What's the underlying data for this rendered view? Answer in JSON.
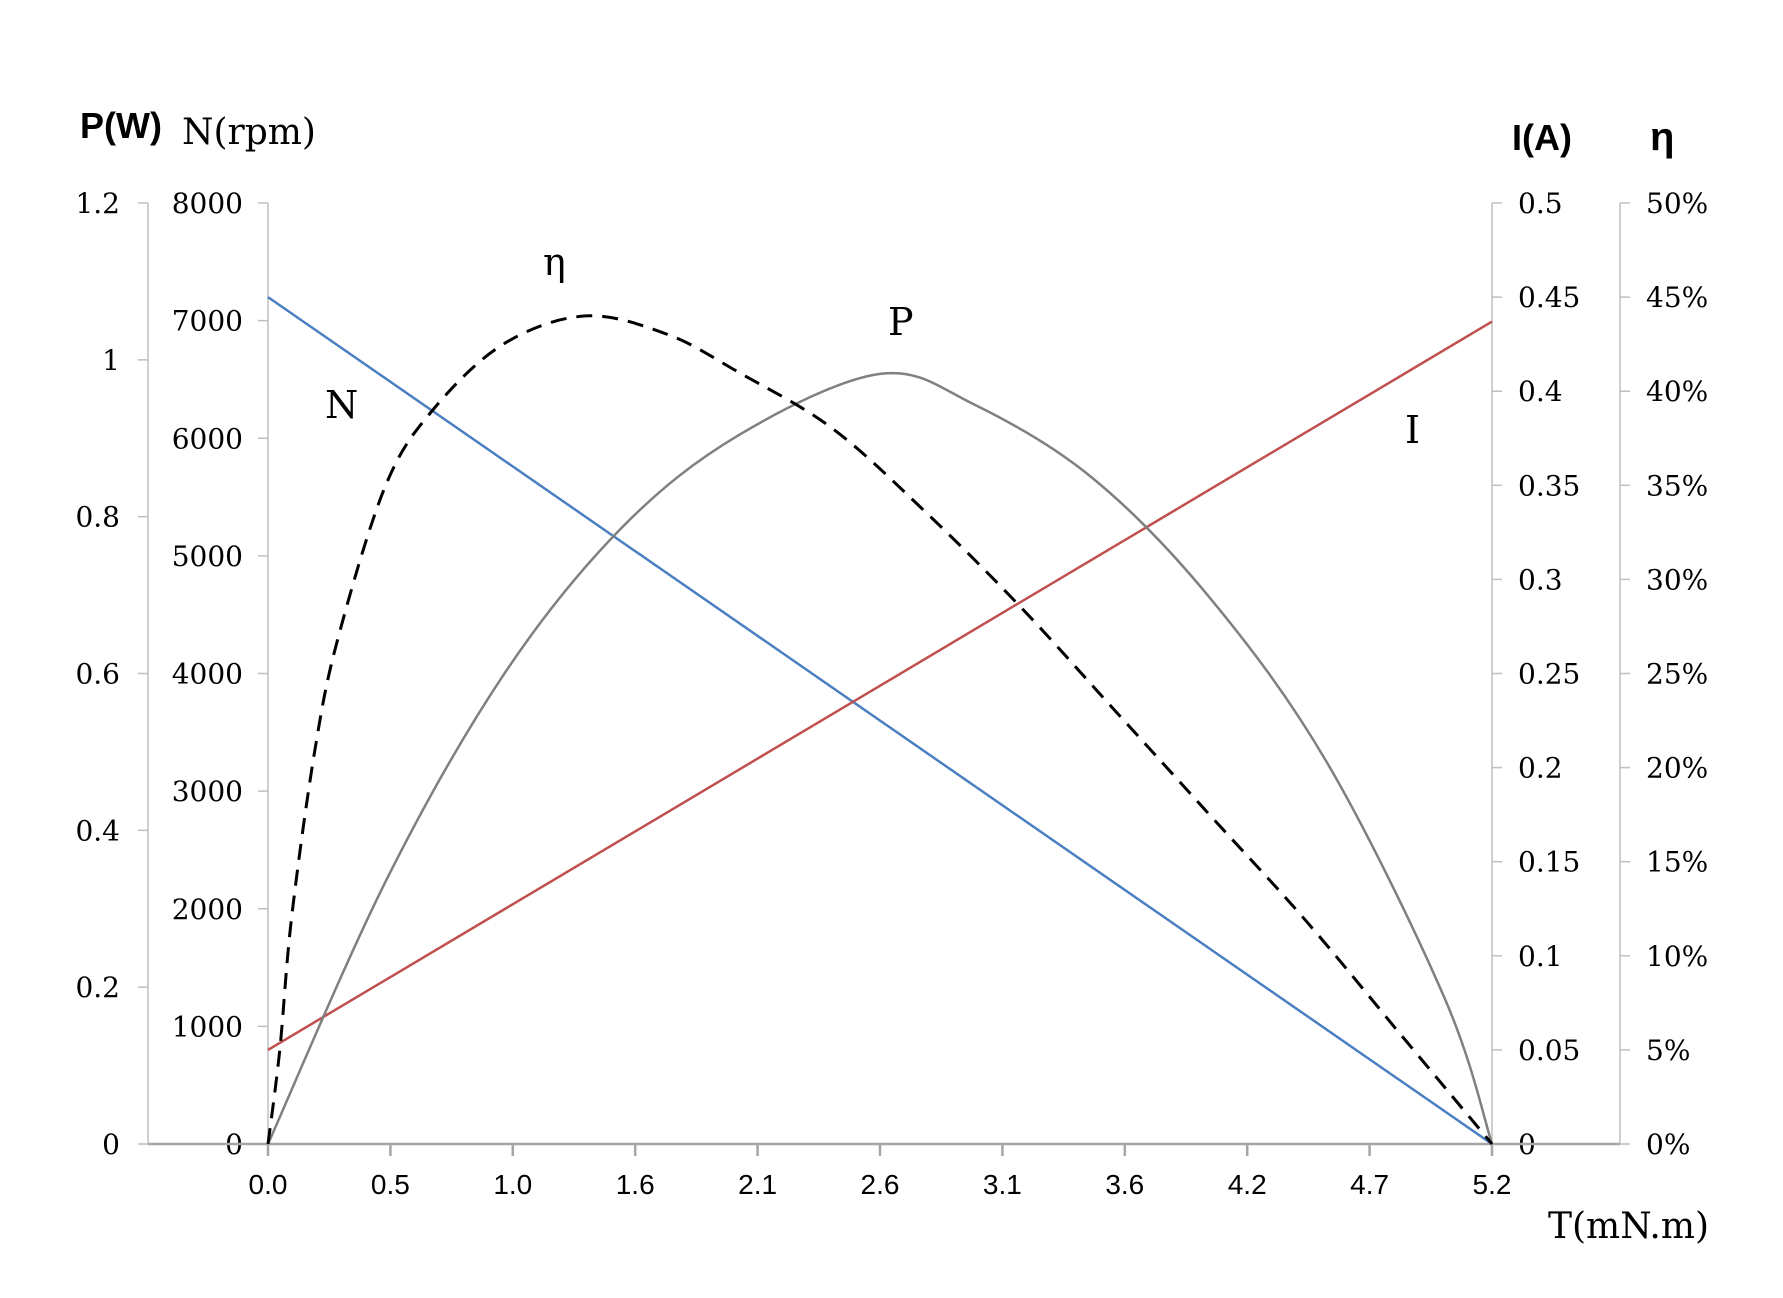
{
  "chart_data": {
    "type": "line",
    "x_label": "T(mN.m)",
    "x_ticks": [
      "0.0",
      "0.5",
      "1.0",
      "1.6",
      "2.1",
      "2.6",
      "3.1",
      "3.6",
      "4.2",
      "4.7",
      "5.2"
    ],
    "x_range": [
      0,
      5.2
    ],
    "axes": {
      "P": {
        "label": "P(W)",
        "range": [
          0,
          1.2
        ],
        "ticks": [
          "0",
          "0.2",
          "0.4",
          "0.6",
          "0.8",
          "1",
          "1.2"
        ]
      },
      "N": {
        "label": "N(rpm)",
        "range": [
          0,
          8000
        ],
        "ticks": [
          "0",
          "1000",
          "2000",
          "3000",
          "4000",
          "5000",
          "6000",
          "7000",
          "8000"
        ]
      },
      "I": {
        "label": "I(A)",
        "range": [
          0,
          0.5
        ],
        "ticks": [
          "0",
          "0.05",
          "0.1",
          "0.15",
          "0.2",
          "0.25",
          "0.3",
          "0.35",
          "0.4",
          "0.45",
          "0.5"
        ]
      },
      "eta": {
        "label": "η",
        "range": [
          0,
          0.5
        ],
        "ticks": [
          "0%",
          "5%",
          "10%",
          "15%",
          "20%",
          "25%",
          "30%",
          "35%",
          "40%",
          "45%",
          "50%"
        ]
      }
    },
    "series": [
      {
        "name": "N",
        "axis": "N",
        "color": "#4a7fc1",
        "dash": false,
        "x": [
          0,
          5.2
        ],
        "y": [
          7200,
          0
        ]
      },
      {
        "name": "I",
        "axis": "I",
        "color": "#c0504d",
        "dash": false,
        "x": [
          0,
          5.2
        ],
        "y": [
          0.05,
          0.437
        ]
      },
      {
        "name": "P",
        "axis": "P",
        "color": "#808080",
        "dash": false,
        "x": [
          0,
          0.5,
          1.0,
          1.5,
          2.0,
          2.6,
          3.0,
          3.5,
          4.0,
          4.5,
          5.0,
          5.2
        ],
        "y": [
          0,
          0.335,
          0.598,
          0.785,
          0.904,
          0.982,
          0.943,
          0.85,
          0.697,
          0.486,
          0.185,
          0
        ]
      },
      {
        "name": "η",
        "axis": "eta",
        "color": "#000000",
        "dash": true,
        "x": [
          0,
          0.05,
          0.1,
          0.2,
          0.3,
          0.5,
          0.7,
          1.0,
          1.35,
          1.7,
          2.0,
          2.4,
          2.8,
          3.2,
          3.6,
          4.0,
          4.4,
          4.8,
          5.0,
          5.2
        ],
        "y": [
          0,
          0.05,
          0.12,
          0.21,
          0.27,
          0.35,
          0.39,
          0.425,
          0.44,
          0.43,
          0.41,
          0.38,
          0.335,
          0.285,
          0.23,
          0.175,
          0.12,
          0.06,
          0.03,
          0
        ]
      }
    ],
    "curve_labels": [
      {
        "text": "N",
        "series": "N"
      },
      {
        "text": "η",
        "series": "η"
      },
      {
        "text": "P",
        "series": "P"
      },
      {
        "text": "I",
        "series": "I"
      }
    ],
    "grid": false,
    "legend": "none"
  }
}
